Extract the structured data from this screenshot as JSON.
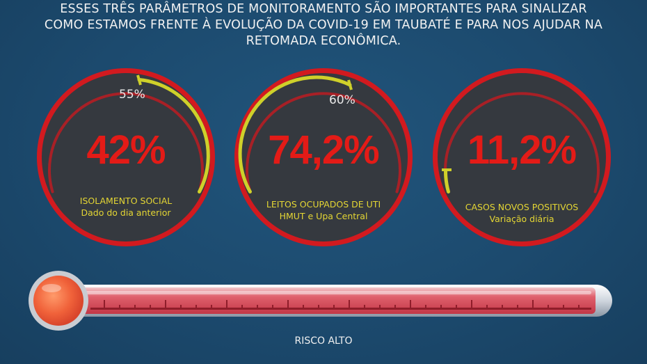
{
  "header": {
    "line1": "ESSES TRÊS PARÂMETROS DE MONITORAMENTO SÃO IMPORTANTES PARA SINALIZAR",
    "line2": "COMO ESTAMOS FRENTE À EVOLUÇÃO DA COVID-19 EM TAUBATÉ E PARA NOS AJUDAR NA",
    "line3": "RETOMADA ECONÔMICA."
  },
  "gauges": [
    {
      "value_text": "42%",
      "threshold_text": "55%",
      "caption1": "ISOLAMENTO SOCIAL",
      "caption2": "Dado do dia anterior"
    },
    {
      "value_text": "74,2%",
      "threshold_text": "60%",
      "caption1": "LEITOS OCUPADOS DE UTI",
      "caption2": "HMUT e Upa Central"
    },
    {
      "value_text": "11,2%",
      "threshold_text": "",
      "caption1": "CASOS NOVOS POSITIVOS",
      "caption2": "Variação diária"
    }
  ],
  "thermometer": {
    "label": "RISCO ALTO"
  },
  "colors": {
    "background": "#1c4a6e",
    "ring": "#c4151b",
    "value": "#e31b17",
    "highlight": "#d9d630",
    "caption": "#e4d634"
  }
}
